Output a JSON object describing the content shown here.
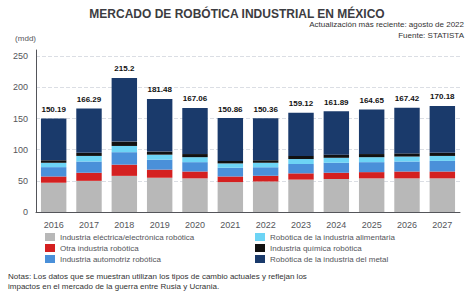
{
  "chart_data": {
    "type": "bar",
    "stacked": true,
    "title": "MERCADO DE ROBÓTICA INDUSTRIAL EN MÉXICO",
    "ylabel": "(mdd)",
    "annotations": [
      "Actualización más reciente: agosto de 2022",
      "Fuente: STATISTA",
      "Notas: Los datos que se muestran utilizan los tipos de cambio actuales y reflejan los\nimpactos en el mercado de la guerra entre Rusia y Ucrania."
    ],
    "categories": [
      "2016",
      "2017",
      "2018",
      "2019",
      "2020",
      "2021",
      "2022",
      "2023",
      "2024",
      "2025",
      "2026",
      "2027"
    ],
    "series": [
      {
        "name": "Industria eléctrica/electrónica robótica",
        "color": "#b8b8b8",
        "values": [
          47,
          50,
          58,
          55,
          54,
          48,
          49,
          52,
          53,
          54,
          54,
          54
        ]
      },
      {
        "name": "Otra industria robótica",
        "color": "#d42020",
        "values": [
          10,
          13,
          18,
          13,
          11,
          9,
          9,
          10,
          10,
          10,
          11,
          11
        ]
      },
      {
        "name": "Industria automotriz robótica",
        "color": "#4a90d9",
        "values": [
          15,
          18,
          20,
          16,
          15,
          14,
          14,
          15,
          16,
          16,
          16,
          17
        ]
      },
      {
        "name": "Robótica de la industria alimentaria",
        "color": "#6dd4f5",
        "values": [
          7,
          9,
          10,
          8,
          8,
          7,
          7,
          8,
          8,
          8,
          8,
          8
        ]
      },
      {
        "name": "Industria química robótica",
        "color": "#111111",
        "values": [
          4,
          5,
          7,
          5,
          5,
          4,
          4,
          5,
          5,
          5,
          5,
          5
        ]
      },
      {
        "name": "Robótica de la industria del metal",
        "color": "#1a3a6b",
        "values": [
          67.19,
          71.29,
          102.2,
          84.48,
          74.06,
          68.86,
          67.36,
          69.12,
          69.89,
          71.65,
          73.42,
          75.18
        ]
      }
    ],
    "totals": [
      150.19,
      166.29,
      215.2,
      181.48,
      167.06,
      150.86,
      150.36,
      159.12,
      161.89,
      164.65,
      167.42,
      170.18
    ],
    "ylim": [
      0,
      260
    ],
    "yticks": [
      0,
      50,
      100,
      150,
      200,
      250
    ],
    "grid": true,
    "legend": "bottom"
  }
}
